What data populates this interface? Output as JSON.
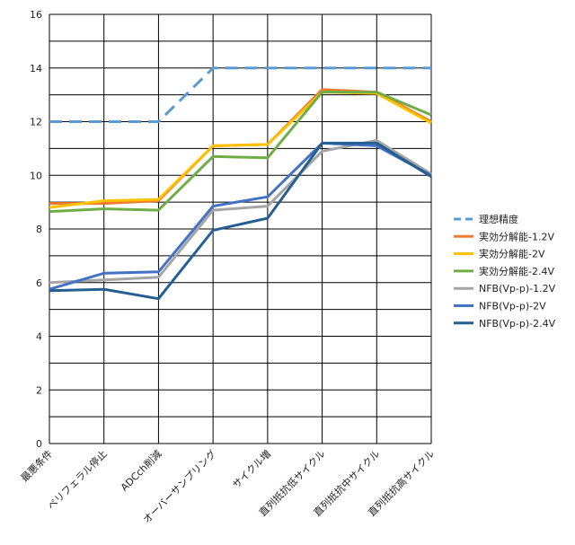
{
  "chart_data": {
    "type": "line",
    "title": "",
    "xlabel": "",
    "ylabel": "",
    "ylim": [
      0,
      16
    ],
    "yticks": [
      0,
      2,
      4,
      6,
      8,
      10,
      12,
      14,
      16
    ],
    "grid": "horizontal-and-vertical",
    "legend_position": "right",
    "categories": [
      "最悪条件",
      "ペリフェラル停止",
      "ADCch削減",
      "オーバーサンプリング",
      "サイクル増",
      "直列抵抗低サイクル",
      "直列抵抗中サイクル",
      "直列抵抗高サイクル"
    ],
    "series": [
      {
        "name": "理想精度",
        "color": "#5B9BD5",
        "dash": true,
        "values": [
          12,
          12,
          12,
          14,
          14,
          14,
          14,
          14
        ]
      },
      {
        "name": "実効分解能-1.2V",
        "color": "#ED7D31",
        "dash": false,
        "values": [
          8.95,
          8.95,
          9.05,
          11.1,
          11.15,
          13.2,
          13.1,
          12.0
        ]
      },
      {
        "name": "実効分解能-2V",
        "color": "#FFC000",
        "dash": false,
        "values": [
          8.8,
          9.05,
          9.1,
          11.1,
          11.15,
          13.1,
          13.05,
          11.95
        ]
      },
      {
        "name": "実効分解能-2.4V",
        "color": "#70AD47",
        "dash": false,
        "values": [
          8.65,
          8.75,
          8.7,
          10.7,
          10.65,
          13.1,
          13.1,
          12.25
        ]
      },
      {
        "name": "NFB(Vp-p)-1.2V",
        "color": "#A5A5A5",
        "dash": false,
        "values": [
          6.0,
          6.1,
          6.2,
          8.7,
          8.85,
          10.9,
          11.3,
          10.05
        ]
      },
      {
        "name": "NFB(Vp-p)-2V",
        "color": "#4472C4",
        "dash": false,
        "values": [
          5.75,
          6.35,
          6.4,
          8.85,
          9.2,
          11.2,
          11.1,
          10.0
        ]
      },
      {
        "name": "NFB(Vp-p)-2.4V",
        "color": "#255E91",
        "dash": false,
        "values": [
          5.7,
          5.75,
          5.4,
          7.95,
          8.4,
          11.2,
          11.2,
          9.95
        ]
      }
    ]
  }
}
